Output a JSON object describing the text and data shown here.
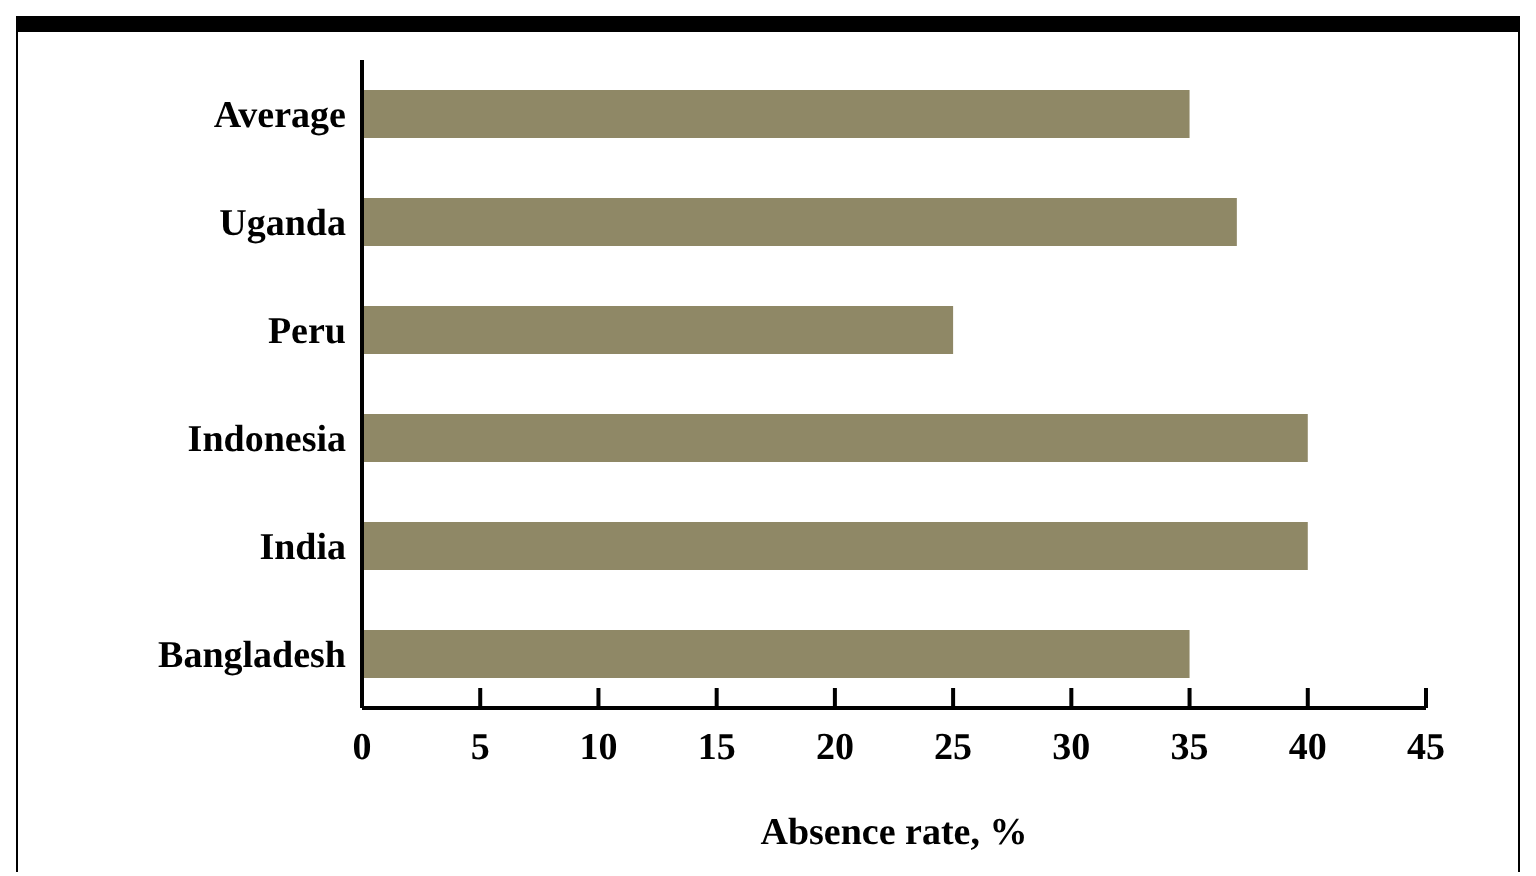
{
  "chart_data": {
    "type": "bar",
    "orientation": "horizontal",
    "xlabel": "Absence rate, %",
    "categories": [
      "Average",
      "Uganda",
      "Peru",
      "Indonesia",
      "India",
      "Bangladesh"
    ],
    "values": [
      35,
      37,
      25,
      40,
      40,
      35
    ],
    "color": "#8f8866",
    "xlim": [
      0,
      45
    ],
    "xticks": [
      0,
      5,
      10,
      15,
      20,
      25,
      30,
      35,
      40,
      45
    ],
    "grid": false,
    "legend": false
  }
}
